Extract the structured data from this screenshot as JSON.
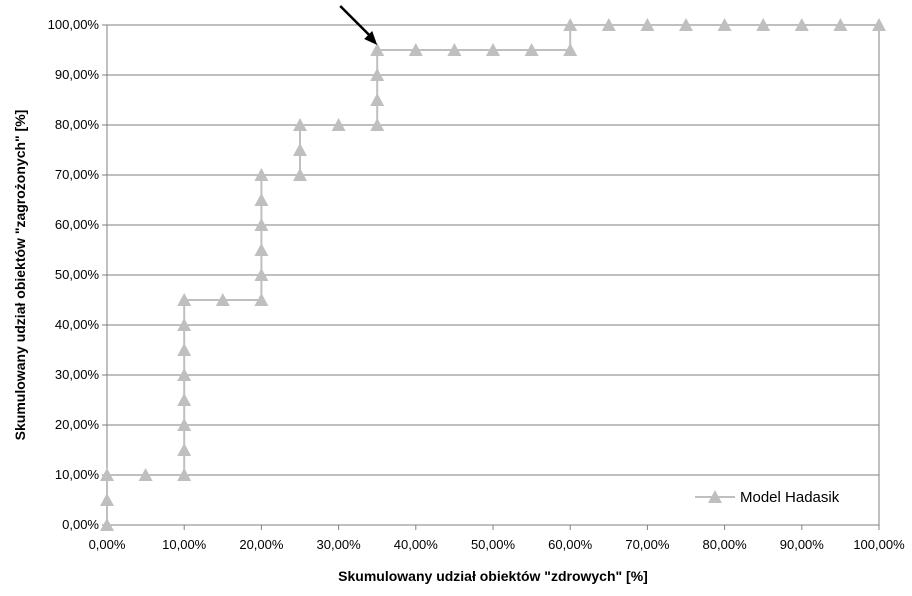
{
  "chart_data": {
    "type": "line",
    "title": "",
    "xlabel": "Skumulowany udział obiektów \"zdrowych\" [%]",
    "ylabel": "Skumulowany udział obiektów \"zagrożonych\" [%]",
    "xlim": [
      0,
      100
    ],
    "ylim": [
      0,
      100
    ],
    "x_ticks": [
      "0,00%",
      "10,00%",
      "20,00%",
      "30,00%",
      "40,00%",
      "50,00%",
      "60,00%",
      "70,00%",
      "80,00%",
      "90,00%",
      "100,00%"
    ],
    "y_ticks": [
      "0,00%",
      "10,00%",
      "20,00%",
      "30,00%",
      "40,00%",
      "50,00%",
      "60,00%",
      "70,00%",
      "80,00%",
      "90,00%",
      "100,00%"
    ],
    "grid": "horizontal",
    "legend_position": "bottom-right",
    "series_color": "#bfbfbf",
    "series": [
      {
        "name": "Model Hadasik",
        "marker": "triangle",
        "x": [
          0,
          0,
          0,
          5,
          10,
          10,
          10,
          10,
          10,
          10,
          10,
          10,
          15,
          20,
          20,
          20,
          20,
          20,
          20,
          25,
          25,
          25,
          30,
          35,
          35,
          35,
          35,
          40,
          45,
          50,
          55,
          60,
          60,
          65,
          70,
          75,
          80,
          85,
          90,
          95,
          100
        ],
        "y": [
          0,
          5,
          10,
          10,
          10,
          15,
          20,
          25,
          30,
          35,
          40,
          45,
          45,
          45,
          50,
          55,
          60,
          65,
          70,
          70,
          75,
          80,
          80,
          80,
          85,
          90,
          95,
          95,
          95,
          95,
          95,
          95,
          100,
          100,
          100,
          100,
          100,
          100,
          100,
          100,
          100
        ]
      }
    ],
    "annotations": [
      {
        "type": "arrow",
        "target": {
          "x": 35,
          "y": 95
        }
      }
    ]
  }
}
